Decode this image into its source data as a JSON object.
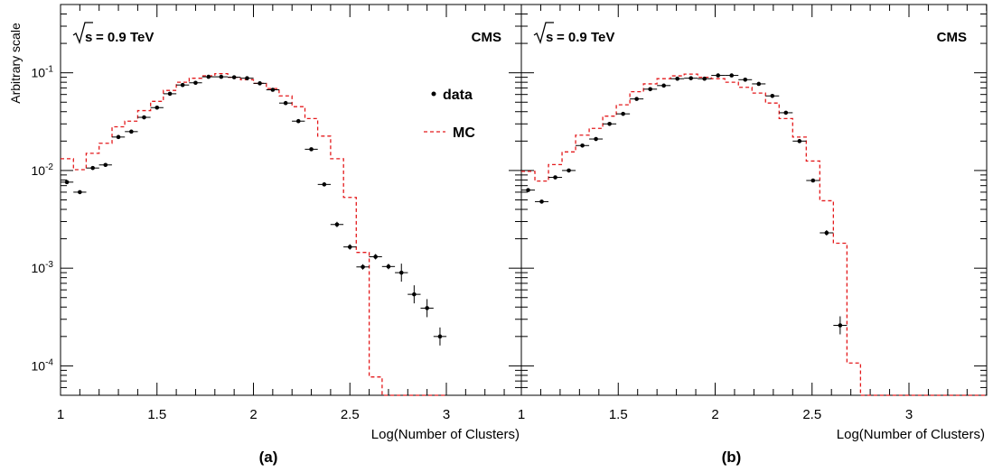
{
  "y_axis_label": "Arbitrary scale",
  "legend": {
    "data_label": "data",
    "mc_label": "MC"
  },
  "colors": {
    "data": "#000000",
    "mc": "#e41a1c",
    "axis": "#000000"
  },
  "chart_data": [
    {
      "type": "scatter",
      "panel_label": "(a)",
      "energy_label": "= 0.9 TeV",
      "experiment_label": "CMS",
      "xlabel": "Log(Number of Clusters)",
      "ylabel": "Arbitrary scale",
      "xlim": [
        1.0,
        3.0
      ],
      "ylim": [
        5e-05,
        0.5
      ],
      "yscale": "log",
      "x_ticks": [
        "1",
        "1.5",
        "2",
        "2.5",
        "3"
      ],
      "y_ticks": [
        "10^-4",
        "10^-3",
        "10^-2",
        "10^-1"
      ],
      "legend_position": "top-right",
      "series": [
        {
          "name": "data",
          "style": "markers",
          "bin_width": 0.067,
          "x": [
            1.033,
            1.1,
            1.167,
            1.233,
            1.3,
            1.367,
            1.433,
            1.5,
            1.567,
            1.633,
            1.7,
            1.767,
            1.833,
            1.9,
            1.967,
            2.033,
            2.1,
            2.167,
            2.233,
            2.3,
            2.367,
            2.433,
            2.5,
            2.567,
            2.633,
            2.7,
            2.767,
            2.833,
            2.9,
            2.967
          ],
          "y": [
            0.0076,
            0.006,
            0.0106,
            0.0114,
            0.022,
            0.025,
            0.035,
            0.044,
            0.061,
            0.075,
            0.079,
            0.091,
            0.091,
            0.09,
            0.088,
            0.078,
            0.067,
            0.049,
            0.032,
            0.0165,
            0.0072,
            0.0028,
            0.00165,
            0.00103,
            0.00131,
            0.00104,
            0.0009,
            0.00054,
            0.00039,
            0.0002
          ]
        },
        {
          "name": "MC",
          "style": "dashed-step",
          "bin_edges": [
            1.0,
            1.067,
            1.133,
            1.2,
            1.267,
            1.333,
            1.4,
            1.467,
            1.533,
            1.6,
            1.667,
            1.733,
            1.8,
            1.867,
            1.933,
            2.0,
            2.067,
            2.133,
            2.2,
            2.267,
            2.333,
            2.4,
            2.467,
            2.533,
            2.6,
            2.667,
            2.733,
            2.8,
            2.867,
            2.933,
            3.0
          ],
          "values": [
            0.0132,
            0.0102,
            0.015,
            0.019,
            0.028,
            0.032,
            0.041,
            0.051,
            0.066,
            0.08,
            0.088,
            0.093,
            0.098,
            0.09,
            0.085,
            0.078,
            0.069,
            0.058,
            0.045,
            0.034,
            0.0225,
            0.0132,
            0.0053,
            0.00145,
            7.7e-05,
            5e-05,
            5e-05,
            5e-05,
            5e-05,
            5e-05
          ]
        }
      ]
    },
    {
      "type": "scatter",
      "panel_label": "(b)",
      "energy_label": "= 0.9 TeV",
      "experiment_label": "CMS",
      "xlabel": "Log(Number of Clusters)",
      "ylabel": "",
      "xlim": [
        1.0,
        3.4
      ],
      "ylim": [
        5e-05,
        0.5
      ],
      "yscale": "log",
      "x_ticks": [
        "1",
        "1.5",
        "2",
        "2.5",
        "3"
      ],
      "y_ticks": [],
      "series": [
        {
          "name": "data",
          "style": "markers",
          "bin_width": 0.07,
          "x": [
            1.035,
            1.105,
            1.175,
            1.245,
            1.315,
            1.385,
            1.455,
            1.525,
            1.595,
            1.665,
            1.735,
            1.805,
            1.875,
            1.945,
            2.015,
            2.085,
            2.155,
            2.225,
            2.295,
            2.365,
            2.435,
            2.505,
            2.575,
            2.645,
            2.715,
            2.785
          ],
          "y": [
            0.0063,
            0.0048,
            0.0085,
            0.01,
            0.018,
            0.021,
            0.03,
            0.038,
            0.054,
            0.068,
            0.074,
            0.087,
            0.088,
            0.087,
            0.094,
            0.094,
            0.085,
            0.077,
            0.058,
            0.039,
            0.02,
            0.0079,
            0.0023,
            0.00026,
            0.0,
            0.0
          ]
        },
        {
          "name": "MC",
          "style": "dashed-step",
          "bin_edges": [
            1.0,
            1.07,
            1.14,
            1.21,
            1.28,
            1.35,
            1.42,
            1.49,
            1.56,
            1.63,
            1.7,
            1.77,
            1.84,
            1.91,
            1.98,
            2.05,
            2.12,
            2.19,
            2.26,
            2.33,
            2.4,
            2.47,
            2.54,
            2.61,
            2.68,
            2.75,
            2.82,
            2.89,
            2.96,
            3.03,
            3.1,
            3.17,
            3.24,
            3.31,
            3.4
          ],
          "values": [
            0.0098,
            0.0078,
            0.0115,
            0.0155,
            0.023,
            0.027,
            0.036,
            0.047,
            0.064,
            0.077,
            0.087,
            0.093,
            0.097,
            0.09,
            0.087,
            0.08,
            0.071,
            0.062,
            0.049,
            0.034,
            0.022,
            0.0125,
            0.0049,
            0.0018,
            0.000107,
            5e-05,
            5e-05,
            5e-05,
            5e-05,
            5e-05,
            5e-05,
            5e-05,
            5e-05,
            5e-05
          ]
        }
      ]
    }
  ]
}
